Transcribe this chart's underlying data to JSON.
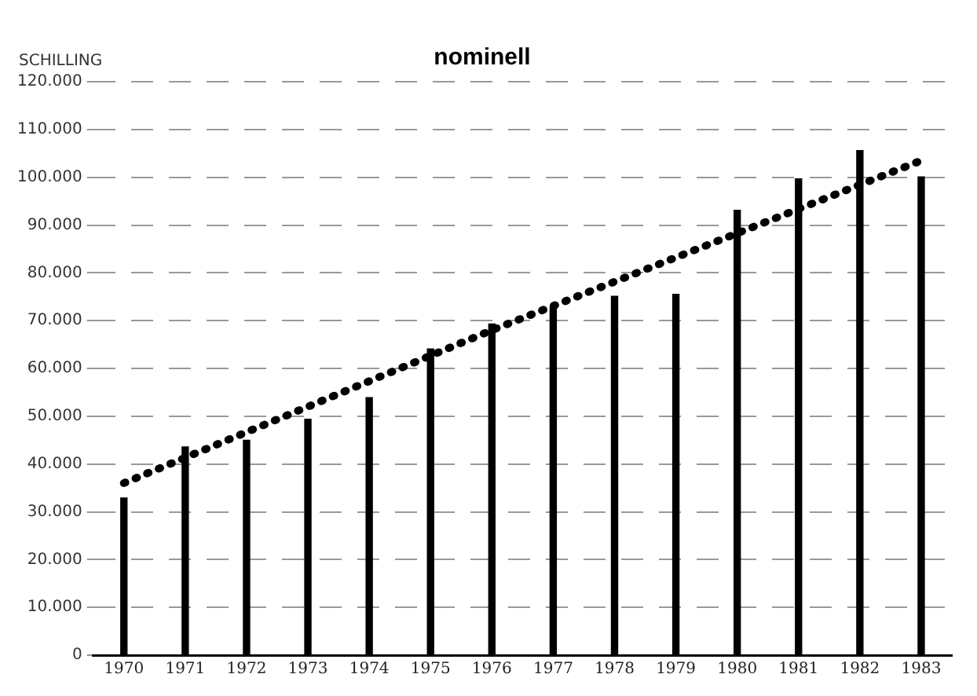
{
  "chart_data": {
    "type": "bar",
    "title": "nominell",
    "ylabel": "SCHILLING",
    "categories": [
      "1970",
      "1971",
      "1972",
      "1973",
      "1974",
      "1975",
      "1976",
      "1977",
      "1978",
      "1979",
      "1980",
      "1981",
      "1982",
      "1983"
    ],
    "series": [
      {
        "color": "#000000",
        "values": [
          33000,
          43700,
          45100,
          49500,
          54000,
          64200,
          69400,
          73000,
          75200,
          75600,
          93200,
          99800,
          105700,
          100200
        ]
      },
      {
        "type": "line",
        "color": "#000000",
        "line_style": "dotted",
        "values": [
          36000,
          null,
          null,
          null,
          null,
          null,
          68000,
          null,
          null,
          null,
          null,
          null,
          null,
          103500
        ]
      }
    ],
    "ylim": [
      0,
      120000
    ],
    "yticks": [
      {
        "value": 0,
        "label": "0"
      },
      {
        "value": 10000,
        "label": "10.000"
      },
      {
        "value": 20000,
        "label": "20.000"
      },
      {
        "value": 30000,
        "label": "30.000"
      },
      {
        "value": 40000,
        "label": "40.000"
      },
      {
        "value": 50000,
        "label": "50.000"
      },
      {
        "value": 60000,
        "label": "60.000"
      },
      {
        "value": 70000,
        "label": "70.000"
      },
      {
        "value": 80000,
        "label": "80.000"
      },
      {
        "value": 90000,
        "label": "90.000"
      },
      {
        "value": 100000,
        "label": "100.000"
      },
      {
        "value": 110000,
        "label": "110.000"
      },
      {
        "value": 120000,
        "label": "120.000"
      }
    ],
    "grid": "y",
    "legend": false
  }
}
